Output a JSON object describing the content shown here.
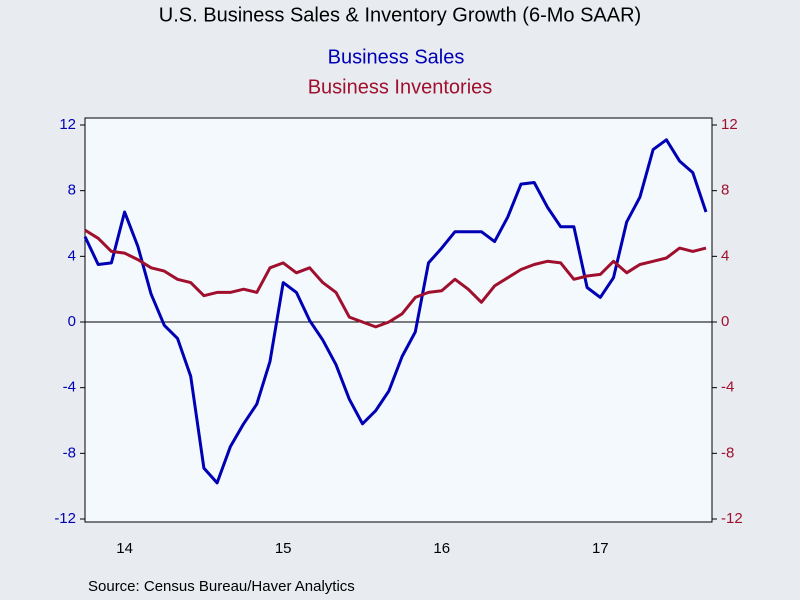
{
  "chart_data": {
    "type": "line",
    "title": "U.S. Business Sales & Inventory Growth (6-Mo SAAR)",
    "source": "Source:  Census Bureau/Haver Analytics",
    "categories": [
      null,
      null,
      null,
      "14",
      null,
      null,
      null,
      null,
      null,
      null,
      null,
      null,
      null,
      null,
      null,
      "15",
      null,
      null,
      null,
      null,
      null,
      null,
      null,
      null,
      null,
      null,
      null,
      "16",
      null,
      null,
      null,
      null,
      null,
      null,
      null,
      null,
      null,
      null,
      null,
      "17",
      null,
      null,
      null,
      null,
      null,
      null,
      null,
      null
    ],
    "series": [
      {
        "name": "Business Sales",
        "color": "#0000b4",
        "axis": "y",
        "values": [
          5.2,
          3.5,
          3.6,
          6.7,
          4.6,
          1.7,
          -0.2,
          -1.0,
          -3.3,
          -8.9,
          -9.8,
          -7.6,
          -6.2,
          -5.0,
          -2.4,
          2.4,
          1.8,
          0.1,
          -1.1,
          -2.6,
          -4.7,
          -6.2,
          -5.4,
          -4.2,
          -2.1,
          -0.6,
          3.6,
          4.5,
          5.5,
          5.5,
          5.5,
          4.9,
          6.4,
          8.4,
          8.5,
          7.0,
          5.8,
          5.8,
          2.1,
          1.5,
          2.7,
          6.1,
          7.6,
          10.5,
          11.1,
          9.8,
          9.1,
          6.7
        ]
      },
      {
        "name": "Business Inventories",
        "color": "#a0102e",
        "axis": "y2",
        "values": [
          5.6,
          5.1,
          4.3,
          4.2,
          3.8,
          3.3,
          3.1,
          2.6,
          2.4,
          1.6,
          1.8,
          1.8,
          2.0,
          1.8,
          3.3,
          3.6,
          3.0,
          3.3,
          2.4,
          1.8,
          0.3,
          0.0,
          -0.3,
          0.0,
          0.5,
          1.5,
          1.8,
          1.9,
          2.6,
          2.0,
          1.2,
          2.2,
          2.7,
          3.2,
          3.5,
          3.7,
          3.6,
          2.6,
          2.8,
          2.9,
          3.7,
          3.0,
          3.5,
          3.7,
          3.9,
          4.5,
          4.3,
          4.5
        ]
      }
    ],
    "ylim": [
      -12,
      12
    ],
    "yticks": [
      -12,
      -8,
      -4,
      0,
      4,
      8,
      12
    ],
    "y2lim": [
      -12,
      12
    ],
    "y2ticks": [
      -12,
      -8,
      -4,
      0,
      4,
      8,
      12
    ],
    "zero_line": true
  }
}
